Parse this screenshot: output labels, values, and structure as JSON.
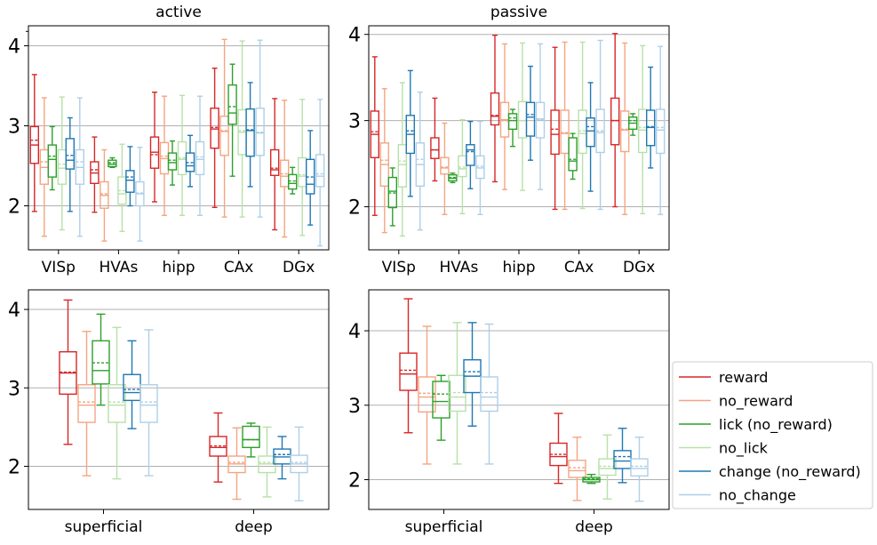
{
  "series_styles": [
    {
      "name": "reward",
      "color": "#d62728"
    },
    {
      "name": "no_reward",
      "color": "#f4a582"
    },
    {
      "name": "lick (no_reward)",
      "color": "#2ca02c"
    },
    {
      "name": "no_lick",
      "color": "#b7e1a8"
    },
    {
      "name": "change (no_reward)",
      "color": "#1f78b4"
    },
    {
      "name": "no_change",
      "color": "#aecfe8"
    }
  ],
  "chart_data": [
    {
      "type": "box",
      "title": "active",
      "categories": [
        "VISp",
        "HVAs",
        "hipp",
        "CAx",
        "DGx"
      ],
      "ylim": [
        1.45,
        4.25
      ],
      "yticks": [
        2,
        3,
        4
      ],
      "grid": true,
      "series": [
        {
          "name": "reward",
          "boxes": [
            {
              "min": 1.93,
              "q1": 2.53,
              "median": 2.76,
              "mean": 2.82,
              "q3": 2.99,
              "max": 3.64
            },
            {
              "min": 1.92,
              "q1": 2.28,
              "median": 2.41,
              "mean": 2.45,
              "q3": 2.55,
              "max": 2.86
            },
            {
              "min": 2.05,
              "q1": 2.47,
              "median": 2.67,
              "mean": 2.64,
              "q3": 2.86,
              "max": 3.42
            },
            {
              "min": 1.98,
              "q1": 2.72,
              "median": 2.96,
              "mean": 2.98,
              "q3": 3.22,
              "max": 3.72
            },
            {
              "min": 1.7,
              "q1": 2.38,
              "median": 2.45,
              "mean": 2.47,
              "q3": 2.7,
              "max": 3.34
            }
          ]
        },
        {
          "name": "no_reward",
          "boxes": [
            {
              "min": 1.62,
              "q1": 2.27,
              "median": 2.48,
              "mean": 2.55,
              "q3": 2.7,
              "max": 3.35
            },
            {
              "min": 1.56,
              "q1": 1.97,
              "median": 2.13,
              "mean": 2.15,
              "q3": 2.3,
              "max": 2.7
            },
            {
              "min": 1.88,
              "q1": 2.4,
              "median": 2.59,
              "mean": 2.62,
              "q3": 2.79,
              "max": 3.37
            },
            {
              "min": 1.86,
              "q1": 2.63,
              "median": 2.93,
              "mean": 2.94,
              "q3": 3.12,
              "max": 4.08
            },
            {
              "min": 1.61,
              "q1": 2.24,
              "median": 2.37,
              "mean": 2.4,
              "q3": 2.57,
              "max": 3.32
            }
          ]
        },
        {
          "name": "lick (no_reward)",
          "boxes": [
            {
              "min": 2.2,
              "q1": 2.36,
              "median": 2.58,
              "mean": 2.62,
              "q3": 2.76,
              "max": 2.99
            },
            {
              "min": 2.48,
              "q1": 2.49,
              "median": 2.52,
              "mean": 2.54,
              "q3": 2.57,
              "max": 2.6
            },
            {
              "min": 2.26,
              "q1": 2.45,
              "median": 2.54,
              "mean": 2.57,
              "q3": 2.66,
              "max": 2.81
            },
            {
              "min": 2.37,
              "q1": 3.02,
              "median": 3.16,
              "mean": 3.24,
              "q3": 3.51,
              "max": 3.77
            },
            {
              "min": 2.15,
              "q1": 2.21,
              "median": 2.28,
              "mean": 2.31,
              "q3": 2.39,
              "max": 2.48
            }
          ]
        },
        {
          "name": "no_lick",
          "boxes": [
            {
              "min": 1.7,
              "q1": 2.27,
              "median": 2.47,
              "mean": 2.52,
              "q3": 2.7,
              "max": 3.36
            },
            {
              "min": 1.68,
              "q1": 2.02,
              "median": 2.15,
              "mean": 2.19,
              "q3": 2.36,
              "max": 2.77
            },
            {
              "min": 1.88,
              "q1": 2.39,
              "median": 2.58,
              "mean": 2.6,
              "q3": 2.8,
              "max": 3.38
            },
            {
              "min": 1.86,
              "q1": 2.64,
              "median": 2.92,
              "mean": 2.94,
              "q3": 3.2,
              "max": 4.06
            },
            {
              "min": 1.63,
              "q1": 2.24,
              "median": 2.37,
              "mean": 2.39,
              "q3": 2.6,
              "max": 3.33
            }
          ]
        },
        {
          "name": "change (no_reward)",
          "boxes": [
            {
              "min": 1.93,
              "q1": 2.46,
              "median": 2.57,
              "mean": 2.63,
              "q3": 2.84,
              "max": 3.1
            },
            {
              "min": 2.0,
              "q1": 2.17,
              "median": 2.32,
              "mean": 2.36,
              "q3": 2.44,
              "max": 2.74
            },
            {
              "min": 2.24,
              "q1": 2.43,
              "median": 2.5,
              "mean": 2.54,
              "q3": 2.66,
              "max": 2.88
            },
            {
              "min": 2.24,
              "q1": 2.62,
              "median": 2.94,
              "mean": 2.95,
              "q3": 3.21,
              "max": 3.54
            },
            {
              "min": 1.76,
              "q1": 2.15,
              "median": 2.27,
              "mean": 2.36,
              "q3": 2.58,
              "max": 2.94
            }
          ]
        },
        {
          "name": "no_change",
          "boxes": [
            {
              "min": 1.62,
              "q1": 2.27,
              "median": 2.48,
              "mean": 2.55,
              "q3": 2.7,
              "max": 3.35
            },
            {
              "min": 1.56,
              "q1": 2.0,
              "median": 2.15,
              "mean": 2.16,
              "q3": 2.3,
              "max": 2.73
            },
            {
              "min": 1.88,
              "q1": 2.39,
              "median": 2.58,
              "mean": 2.61,
              "q3": 2.8,
              "max": 3.37
            },
            {
              "min": 1.86,
              "q1": 2.63,
              "median": 2.91,
              "mean": 2.92,
              "q3": 3.22,
              "max": 4.07
            },
            {
              "min": 1.5,
              "q1": 2.24,
              "median": 2.37,
              "mean": 2.4,
              "q3": 2.64,
              "max": 3.33
            }
          ]
        }
      ]
    },
    {
      "type": "box",
      "title": "passive",
      "categories": [
        "VISp",
        "HVAs",
        "hipp",
        "CAx",
        "DGx"
      ],
      "ylim": [
        1.5,
        4.1
      ],
      "yticks": [
        2,
        3,
        4
      ],
      "grid": true,
      "series": [
        {
          "name": "reward",
          "boxes": [
            {
              "min": 1.9,
              "q1": 2.57,
              "median": 2.84,
              "mean": 2.87,
              "q3": 3.11,
              "max": 3.74
            },
            {
              "min": 2.3,
              "q1": 2.56,
              "median": 2.66,
              "mean": 2.66,
              "q3": 2.8,
              "max": 3.26
            },
            {
              "min": 2.29,
              "q1": 2.95,
              "median": 3.05,
              "mean": 3.06,
              "q3": 3.32,
              "max": 3.99
            },
            {
              "min": 1.97,
              "q1": 2.61,
              "median": 2.84,
              "mean": 2.9,
              "q3": 3.12,
              "max": 3.85
            },
            {
              "min": 2.0,
              "q1": 2.72,
              "median": 3.0,
              "mean": 3.0,
              "q3": 3.26,
              "max": 4.01
            }
          ]
        },
        {
          "name": "no_reward",
          "boxes": [
            {
              "min": 1.7,
              "q1": 2.24,
              "median": 2.49,
              "mean": 2.54,
              "q3": 2.74,
              "max": 3.37
            },
            {
              "min": 1.91,
              "q1": 2.38,
              "median": 2.45,
              "mean": 2.46,
              "q3": 2.57,
              "max": 2.97
            },
            {
              "min": 2.2,
              "q1": 2.81,
              "median": 3.01,
              "mean": 3.0,
              "q3": 3.21,
              "max": 3.89
            },
            {
              "min": 1.97,
              "q1": 2.62,
              "median": 2.85,
              "mean": 2.86,
              "q3": 3.12,
              "max": 3.91
            },
            {
              "min": 1.91,
              "q1": 2.64,
              "median": 2.89,
              "mean": 2.9,
              "q3": 3.11,
              "max": 3.9
            }
          ]
        },
        {
          "name": "lick (no_reward)",
          "boxes": [
            {
              "min": 1.78,
              "q1": 1.99,
              "median": 2.18,
              "mean": 2.16,
              "q3": 2.34,
              "max": 2.45
            },
            {
              "min": 2.28,
              "q1": 2.3,
              "median": 2.33,
              "mean": 2.34,
              "q3": 2.37,
              "max": 2.39
            },
            {
              "min": 2.7,
              "q1": 2.9,
              "median": 3.0,
              "mean": 3.03,
              "q3": 3.08,
              "max": 3.13
            },
            {
              "min": 2.32,
              "q1": 2.42,
              "median": 2.53,
              "mean": 2.55,
              "q3": 2.8,
              "max": 2.85
            },
            {
              "min": 2.83,
              "q1": 2.9,
              "median": 2.97,
              "mean": 3.0,
              "q3": 3.04,
              "max": 3.08
            }
          ]
        },
        {
          "name": "no_lick",
          "boxes": [
            {
              "min": 1.66,
              "q1": 2.23,
              "median": 2.49,
              "mean": 2.53,
              "q3": 2.72,
              "max": 3.44
            },
            {
              "min": 1.92,
              "q1": 2.35,
              "median": 2.44,
              "mean": 2.46,
              "q3": 2.59,
              "max": 3.01
            },
            {
              "min": 2.19,
              "q1": 2.8,
              "median": 3.0,
              "mean": 3.0,
              "q3": 3.22,
              "max": 3.9
            },
            {
              "min": 1.98,
              "q1": 2.62,
              "median": 2.85,
              "mean": 2.88,
              "q3": 3.12,
              "max": 3.91
            },
            {
              "min": 1.92,
              "q1": 2.63,
              "median": 2.89,
              "mean": 2.92,
              "q3": 3.13,
              "max": 3.87
            }
          ]
        },
        {
          "name": "change (no_reward)",
          "boxes": [
            {
              "min": 2.12,
              "q1": 2.62,
              "median": 2.84,
              "mean": 2.88,
              "q3": 3.06,
              "max": 3.58
            },
            {
              "min": 2.21,
              "q1": 2.48,
              "median": 2.66,
              "mean": 2.64,
              "q3": 2.72,
              "max": 2.99
            },
            {
              "min": 2.54,
              "q1": 2.82,
              "median": 3.04,
              "mean": 3.07,
              "q3": 3.21,
              "max": 3.63
            },
            {
              "min": 2.18,
              "q1": 2.7,
              "median": 2.88,
              "mean": 2.93,
              "q3": 3.03,
              "max": 3.44
            },
            {
              "min": 2.45,
              "q1": 2.71,
              "median": 2.92,
              "mean": 2.93,
              "q3": 3.12,
              "max": 3.62
            }
          ]
        },
        {
          "name": "no_change",
          "boxes": [
            {
              "min": 1.73,
              "q1": 2.24,
              "median": 2.49,
              "mean": 2.55,
              "q3": 2.74,
              "max": 3.33
            },
            {
              "min": 1.91,
              "q1": 2.33,
              "median": 2.45,
              "mean": 2.47,
              "q3": 2.59,
              "max": 2.99
            },
            {
              "min": 2.2,
              "q1": 2.8,
              "median": 3.02,
              "mean": 3.01,
              "q3": 3.21,
              "max": 3.89
            },
            {
              "min": 1.97,
              "q1": 2.63,
              "median": 2.86,
              "mean": 2.88,
              "q3": 3.13,
              "max": 3.93
            },
            {
              "min": 1.91,
              "q1": 2.62,
              "median": 2.89,
              "mean": 2.92,
              "q3": 3.13,
              "max": 3.86
            }
          ]
        }
      ]
    },
    {
      "type": "box",
      "title": "",
      "categories": [
        "superficial",
        "deep"
      ],
      "ylim": [
        1.45,
        4.25
      ],
      "yticks": [
        2,
        3,
        4
      ],
      "grid": true,
      "series": [
        {
          "name": "reward",
          "boxes": [
            {
              "min": 2.28,
              "q1": 2.92,
              "median": 3.19,
              "mean": 3.2,
              "q3": 3.46,
              "max": 4.12
            },
            {
              "min": 1.8,
              "q1": 2.13,
              "median": 2.24,
              "mean": 2.26,
              "q3": 2.38,
              "max": 2.68
            }
          ]
        },
        {
          "name": "no_reward",
          "boxes": [
            {
              "min": 1.88,
              "q1": 2.56,
              "median": 2.78,
              "mean": 2.82,
              "q3": 3.04,
              "max": 3.72
            },
            {
              "min": 1.58,
              "q1": 1.92,
              "median": 2.03,
              "mean": 2.05,
              "q3": 2.13,
              "max": 2.49
            }
          ]
        },
        {
          "name": "lick (no_reward)",
          "boxes": [
            {
              "min": 2.78,
              "q1": 3.05,
              "median": 3.22,
              "mean": 3.32,
              "q3": 3.6,
              "max": 3.94
            },
            {
              "min": 2.12,
              "q1": 2.24,
              "median": 2.34,
              "mean": 2.34,
              "q3": 2.51,
              "max": 2.55
            }
          ]
        },
        {
          "name": "no_lick",
          "boxes": [
            {
              "min": 1.84,
              "q1": 2.56,
              "median": 2.78,
              "mean": 2.82,
              "q3": 3.04,
              "max": 3.77
            },
            {
              "min": 1.61,
              "q1": 1.92,
              "median": 2.03,
              "mean": 2.05,
              "q3": 2.13,
              "max": 2.5
            }
          ]
        },
        {
          "name": "change (no_reward)",
          "boxes": [
            {
              "min": 2.48,
              "q1": 2.84,
              "median": 2.94,
              "mean": 2.98,
              "q3": 3.17,
              "max": 3.6
            },
            {
              "min": 1.84,
              "q1": 2.03,
              "median": 2.12,
              "mean": 2.15,
              "q3": 2.22,
              "max": 2.38
            }
          ]
        },
        {
          "name": "no_change",
          "boxes": [
            {
              "min": 1.88,
              "q1": 2.56,
              "median": 2.78,
              "mean": 2.82,
              "q3": 3.04,
              "max": 3.74
            },
            {
              "min": 1.56,
              "q1": 1.92,
              "median": 2.03,
              "mean": 2.05,
              "q3": 2.14,
              "max": 2.5
            }
          ]
        }
      ]
    },
    {
      "type": "box",
      "title": "",
      "categories": [
        "superficial",
        "deep"
      ],
      "ylim": [
        1.6,
        4.55
      ],
      "yticks": [
        2,
        3,
        4
      ],
      "grid": true,
      "series": [
        {
          "name": "reward",
          "boxes": [
            {
              "min": 2.63,
              "q1": 3.2,
              "median": 3.42,
              "mean": 3.47,
              "q3": 3.7,
              "max": 4.43
            },
            {
              "min": 1.95,
              "q1": 2.19,
              "median": 2.31,
              "mean": 2.34,
              "q3": 2.49,
              "max": 2.89
            }
          ]
        },
        {
          "name": "no_reward",
          "boxes": [
            {
              "min": 2.21,
              "q1": 2.91,
              "median": 3.11,
              "mean": 3.16,
              "q3": 3.38,
              "max": 4.06
            },
            {
              "min": 1.72,
              "q1": 2.03,
              "median": 2.12,
              "mean": 2.16,
              "q3": 2.26,
              "max": 2.57
            }
          ]
        },
        {
          "name": "lick (no_reward)",
          "boxes": [
            {
              "min": 2.53,
              "q1": 2.83,
              "median": 3.05,
              "mean": 3.15,
              "q3": 3.32,
              "max": 3.4
            },
            {
              "min": 1.95,
              "q1": 1.97,
              "median": 2.0,
              "mean": 2.01,
              "q3": 2.03,
              "max": 2.07
            }
          ]
        },
        {
          "name": "no_lick",
          "boxes": [
            {
              "min": 2.21,
              "q1": 2.92,
              "median": 3.11,
              "mean": 3.17,
              "q3": 3.4,
              "max": 4.11
            },
            {
              "min": 1.74,
              "q1": 2.06,
              "median": 2.15,
              "mean": 2.18,
              "q3": 2.28,
              "max": 2.6
            }
          ]
        },
        {
          "name": "change (no_reward)",
          "boxes": [
            {
              "min": 2.72,
              "q1": 3.17,
              "median": 3.39,
              "mean": 3.45,
              "q3": 3.61,
              "max": 4.11
            },
            {
              "min": 1.96,
              "q1": 2.15,
              "median": 2.25,
              "mean": 2.31,
              "q3": 2.39,
              "max": 2.69
            }
          ]
        },
        {
          "name": "no_change",
          "boxes": [
            {
              "min": 2.21,
              "q1": 2.92,
              "median": 3.11,
              "mean": 3.17,
              "q3": 3.38,
              "max": 4.09
            },
            {
              "min": 1.71,
              "q1": 2.05,
              "median": 2.15,
              "mean": 2.18,
              "q3": 2.28,
              "max": 2.57
            }
          ]
        }
      ]
    }
  ],
  "legend": {
    "placement": "right",
    "items": [
      "reward",
      "no_reward",
      "lick (no_reward)",
      "no_lick",
      "change (no_reward)",
      "no_change"
    ]
  }
}
